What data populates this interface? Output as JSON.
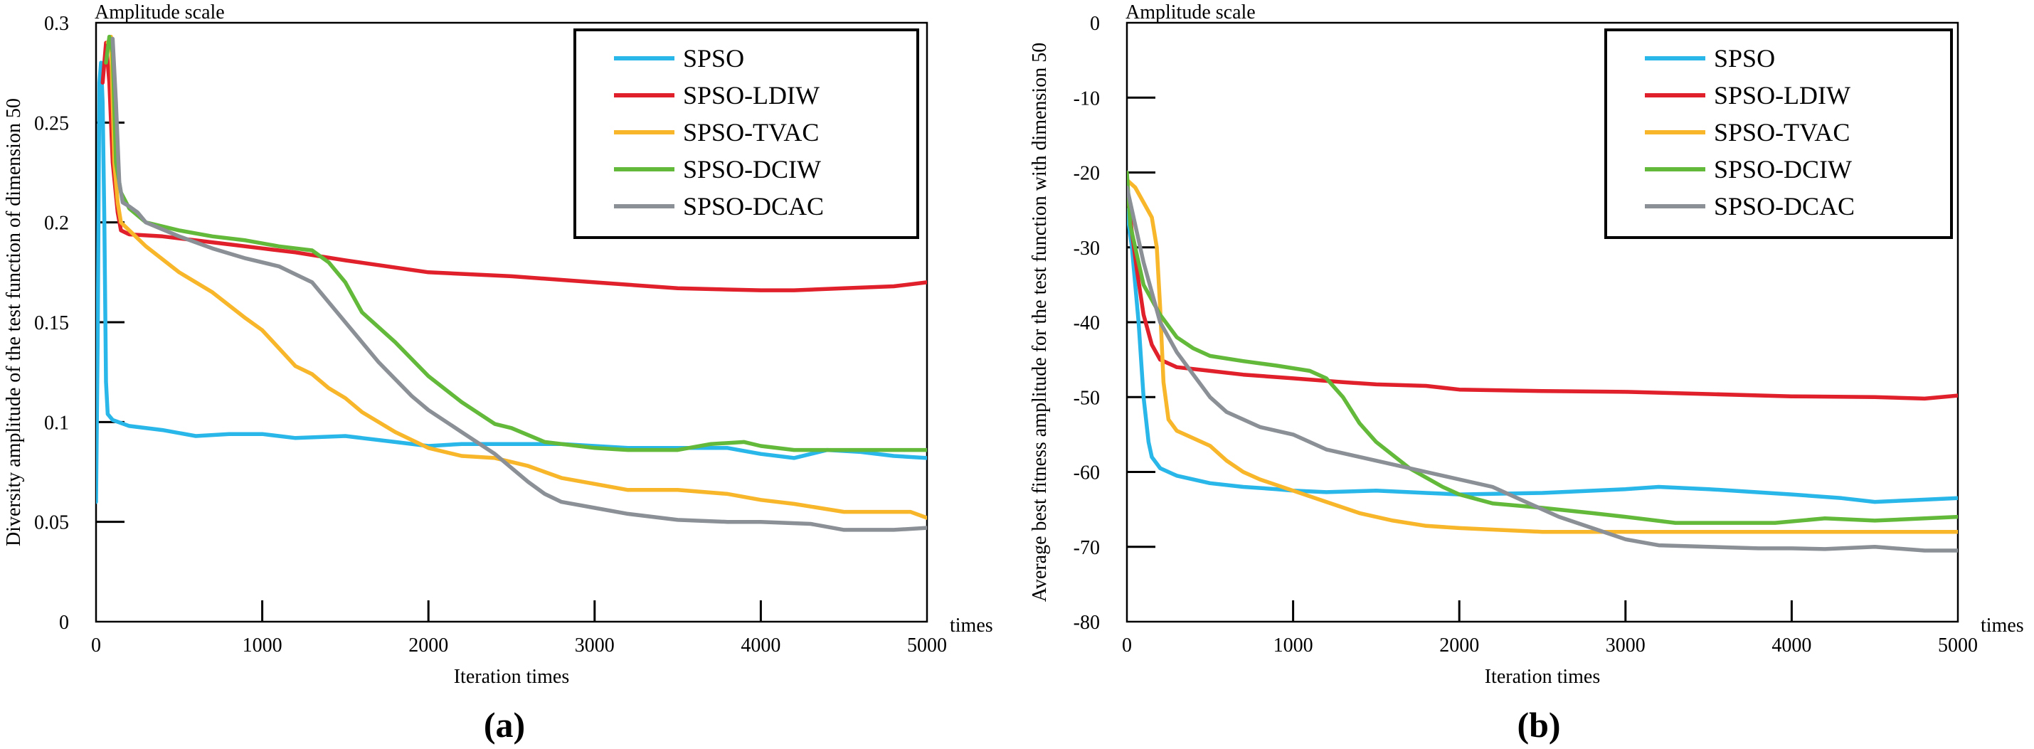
{
  "colors": {
    "SPSO": "#29b6e8",
    "SPSO-LDIW": "#e0202a",
    "SPSO-TVAC": "#f8b62a",
    "SPSO-DCIW": "#63b93a",
    "SPSO-DCAC": "#8a9096",
    "axis": "#000000"
  },
  "chart_data": [
    {
      "type": "line",
      "panel_label": "(a)",
      "corner_label": "Amplitude scale",
      "unit_label": "times",
      "xlabel": "Iteration times",
      "ylabel": "Diversity amplitude of the test function of dimension 50",
      "xlim": [
        0,
        5000
      ],
      "ylim": [
        0,
        0.3
      ],
      "xticks": [
        0,
        1000,
        2000,
        3000,
        4000,
        5000
      ],
      "xtick_labels": [
        "0",
        "1000",
        "2000",
        "3000",
        "4000",
        "5000"
      ],
      "yticks": [
        0,
        0.05,
        0.1,
        0.15,
        0.2,
        0.25,
        0.3
      ],
      "ytick_labels": [
        "0",
        "0.05",
        "0.1",
        "0.15",
        "0.2",
        "0.25",
        "0.3"
      ],
      "legend_position": "top-right",
      "series": [
        {
          "name": "SPSO",
          "x": [
            0,
            10,
            20,
            30,
            40,
            50,
            60,
            70,
            100,
            200,
            400,
            600,
            800,
            1000,
            1200,
            1500,
            1800,
            2000,
            2200,
            2500,
            2800,
            3000,
            3200,
            3500,
            3800,
            4000,
            4200,
            4400,
            4600,
            4800,
            5000
          ],
          "y": [
            0.06,
            0.14,
            0.27,
            0.28,
            0.26,
            0.2,
            0.12,
            0.104,
            0.101,
            0.098,
            0.096,
            0.093,
            0.094,
            0.094,
            0.092,
            0.093,
            0.09,
            0.088,
            0.089,
            0.089,
            0.089,
            0.088,
            0.087,
            0.087,
            0.087,
            0.084,
            0.082,
            0.086,
            0.085,
            0.083,
            0.082
          ]
        },
        {
          "name": "SPSO-LDIW",
          "x": [
            40,
            60,
            80,
            100,
            130,
            150,
            200,
            400,
            600,
            800,
            1000,
            1200,
            1500,
            2000,
            2500,
            3000,
            3500,
            4000,
            4200,
            4500,
            4800,
            5000
          ],
          "y": [
            0.27,
            0.29,
            0.27,
            0.23,
            0.205,
            0.196,
            0.194,
            0.193,
            0.191,
            0.189,
            0.187,
            0.185,
            0.181,
            0.175,
            0.173,
            0.17,
            0.167,
            0.166,
            0.166,
            0.167,
            0.168,
            0.17
          ]
        },
        {
          "name": "SPSO-TVAC",
          "x": [
            70,
            90,
            100,
            110,
            130,
            150,
            200,
            300,
            500,
            700,
            900,
            1000,
            1100,
            1200,
            1300,
            1400,
            1500,
            1600,
            1800,
            2000,
            2200,
            2400,
            2600,
            2800,
            3000,
            3200,
            3500,
            3800,
            4000,
            4200,
            4500,
            4800,
            4900,
            5000
          ],
          "y": [
            0.29,
            0.293,
            0.26,
            0.23,
            0.21,
            0.2,
            0.196,
            0.188,
            0.175,
            0.165,
            0.152,
            0.146,
            0.137,
            0.128,
            0.124,
            0.117,
            0.112,
            0.105,
            0.095,
            0.087,
            0.083,
            0.082,
            0.078,
            0.072,
            0.069,
            0.066,
            0.066,
            0.064,
            0.061,
            0.059,
            0.055,
            0.055,
            0.055,
            0.052
          ]
        },
        {
          "name": "SPSO-DCIW",
          "x": [
            60,
            80,
            100,
            120,
            150,
            200,
            300,
            500,
            700,
            900,
            1100,
            1300,
            1400,
            1500,
            1600,
            1800,
            2000,
            2200,
            2400,
            2500,
            2700,
            3000,
            3200,
            3500,
            3700,
            3900,
            4000,
            4200,
            4500,
            4800,
            5000
          ],
          "y": [
            0.28,
            0.293,
            0.285,
            0.23,
            0.215,
            0.207,
            0.2,
            0.196,
            0.193,
            0.191,
            0.188,
            0.186,
            0.18,
            0.17,
            0.155,
            0.14,
            0.123,
            0.11,
            0.099,
            0.097,
            0.09,
            0.087,
            0.086,
            0.086,
            0.089,
            0.09,
            0.088,
            0.086,
            0.086,
            0.086,
            0.086
          ]
        },
        {
          "name": "SPSO-DCAC",
          "x": [
            100,
            120,
            140,
            160,
            200,
            250,
            300,
            500,
            700,
            900,
            1100,
            1300,
            1400,
            1500,
            1700,
            1900,
            2000,
            2200,
            2400,
            2500,
            2600,
            2700,
            2800,
            3000,
            3200,
            3500,
            3800,
            4000,
            4300,
            4500,
            4800,
            5000
          ],
          "y": [
            0.292,
            0.26,
            0.22,
            0.21,
            0.208,
            0.205,
            0.2,
            0.193,
            0.187,
            0.182,
            0.178,
            0.17,
            0.16,
            0.15,
            0.13,
            0.113,
            0.106,
            0.095,
            0.084,
            0.077,
            0.07,
            0.064,
            0.06,
            0.057,
            0.054,
            0.051,
            0.05,
            0.05,
            0.049,
            0.046,
            0.046,
            0.047
          ]
        }
      ]
    },
    {
      "type": "line",
      "panel_label": "(b)",
      "corner_label": "Amplitude scale",
      "unit_label": "times",
      "xlabel": "Iteration times",
      "ylabel": "Average best fitness amplitude for the test function with dimension 50",
      "xlim": [
        0,
        5000
      ],
      "ylim": [
        -80,
        0
      ],
      "xticks": [
        0,
        1000,
        2000,
        3000,
        4000,
        5000
      ],
      "xtick_labels": [
        "0",
        "1000",
        "2000",
        "3000",
        "4000",
        "5000"
      ],
      "yticks": [
        0,
        -10,
        -20,
        -30,
        -40,
        -50,
        -60,
        -70,
        -80
      ],
      "ytick_labels": [
        "0",
        "-10",
        "-20",
        "-30",
        "-40",
        "-50",
        "-60",
        "-70",
        "-80"
      ],
      "legend_position": "top-right",
      "series": [
        {
          "name": "SPSO",
          "x": [
            0,
            30,
            50,
            70,
            100,
            130,
            150,
            200,
            300,
            500,
            700,
            900,
            1000,
            1200,
            1500,
            1800,
            2000,
            2500,
            3000,
            3200,
            3500,
            4000,
            4300,
            4500,
            4700,
            5000
          ],
          "y": [
            -25,
            -30,
            -35,
            -40,
            -50,
            -56,
            -58,
            -59.5,
            -60.5,
            -61.5,
            -62,
            -62.3,
            -62.5,
            -62.7,
            -62.5,
            -62.8,
            -63,
            -62.8,
            -62.3,
            -62,
            -62.3,
            -63,
            -63.5,
            -64,
            -63.8,
            -63.5
          ]
        },
        {
          "name": "SPSO-LDIW",
          "x": [
            0,
            30,
            60,
            100,
            150,
            200,
            300,
            500,
            700,
            1000,
            1300,
            1500,
            1800,
            2000,
            2500,
            3000,
            3500,
            4000,
            4500,
            4800,
            5000
          ],
          "y": [
            -22,
            -28,
            -33,
            -39,
            -43,
            -45,
            -46,
            -46.5,
            -47,
            -47.5,
            -48,
            -48.3,
            -48.5,
            -49,
            -49.2,
            -49.3,
            -49.6,
            -49.9,
            -50,
            -50.2,
            -49.8
          ]
        },
        {
          "name": "SPSO-TVAC",
          "x": [
            0,
            50,
            100,
            150,
            180,
            200,
            220,
            250,
            300,
            400,
            500,
            600,
            700,
            800,
            1000,
            1200,
            1400,
            1600,
            1800,
            2000,
            2500,
            3000,
            3500,
            4000,
            4500,
            5000
          ],
          "y": [
            -21,
            -22,
            -24,
            -26,
            -30,
            -38,
            -48,
            -53,
            -54.5,
            -55.5,
            -56.5,
            -58.5,
            -60,
            -61,
            -62.5,
            -64,
            -65.5,
            -66.5,
            -67.2,
            -67.5,
            -68,
            -68,
            -68,
            -68,
            -68,
            -68
          ]
        },
        {
          "name": "SPSO-DCIW",
          "x": [
            0,
            20,
            50,
            80,
            100,
            150,
            200,
            300,
            400,
            500,
            700,
            900,
            1100,
            1200,
            1300,
            1400,
            1500,
            1700,
            1900,
            2000,
            2200,
            2500,
            2800,
            3000,
            3300,
            3600,
            3900,
            4200,
            4500,
            4800,
            5000
          ],
          "y": [
            -20,
            -27,
            -30,
            -33,
            -35,
            -37,
            -39,
            -42,
            -43.5,
            -44.5,
            -45.2,
            -45.8,
            -46.5,
            -47.5,
            -50,
            -53.5,
            -56,
            -59.5,
            -62,
            -63,
            -64.2,
            -64.8,
            -65.5,
            -66,
            -66.8,
            -66.8,
            -66.8,
            -66.2,
            -66.5,
            -66.2,
            -66
          ]
        },
        {
          "name": "SPSO-DCAC",
          "x": [
            0,
            20,
            50,
            80,
            100,
            150,
            200,
            300,
            400,
            500,
            600,
            800,
            1000,
            1200,
            1500,
            1800,
            2000,
            2200,
            2400,
            2600,
            2800,
            3000,
            3200,
            3500,
            3800,
            4000,
            4200,
            4500,
            4800,
            5000
          ],
          "y": [
            -22,
            -24,
            -27,
            -30,
            -32,
            -36,
            -40,
            -44,
            -47,
            -50,
            -52,
            -54,
            -55,
            -57,
            -58.5,
            -60,
            -61,
            -62,
            -64,
            -66,
            -67.5,
            -69,
            -69.8,
            -70,
            -70.2,
            -70.2,
            -70.3,
            -70,
            -70.5,
            -70.5
          ]
        }
      ]
    }
  ]
}
